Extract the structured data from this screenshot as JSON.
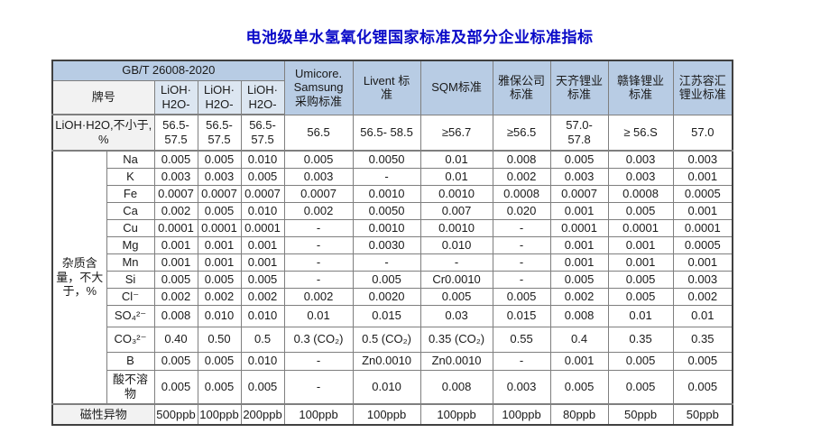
{
  "title": "电池级单水氢氧化锂国家标准及部分企业标准指标",
  "colors": {
    "title_blue": "#0a0ac8",
    "header_blue": "#b8cce4",
    "grade_blue": "#dce6f1",
    "label_gray": "#f2f2f2",
    "outer_border": "#404040",
    "grid_border": "#7f7f7f"
  },
  "table": {
    "header": {
      "gbt": "GB/T 26008-2020",
      "brand": "牌号",
      "grades": [
        "LiOH·\nH2O-",
        "LiOH·\nH2O-",
        "LiOH·\nH2O-"
      ],
      "companies": [
        "Umicore.\nSamsung\n采购标准",
        "Livent 标\n准",
        "SQM标准",
        "雅保公司\n标准",
        "天齐锂业\n标准",
        "赣锋锂业\n标准",
        "江苏容汇\n锂业标准"
      ]
    },
    "lioh_row": {
      "label": "LiOH·H2O,不小于, %",
      "values": [
        "56.5-\n57.5",
        "56.5-\n57.5",
        "56.5-\n57.5",
        "56.5",
        "56.5- 58.5",
        "≥56.7",
        "≥56.5",
        "57.0-\n57.8",
        "≥ 56.S",
        "57.0"
      ]
    },
    "impurity_section_label": "杂质含量，不大于，%",
    "impurity_rows": [
      {
        "element": "Na",
        "values": [
          "0.005",
          "0.005",
          "0.010",
          "0.005",
          "0.0050",
          "0.01",
          "0.008",
          "0.005",
          "0.003",
          "0.003"
        ]
      },
      {
        "element": "K",
        "values": [
          "0.003",
          "0.003",
          "0.005",
          "0.003",
          "-",
          "0.01",
          "0.002",
          "0.003",
          "0.003",
          "0.001"
        ]
      },
      {
        "element": "Fe",
        "values": [
          "0.0007",
          "0.0007",
          "0.0007",
          "0.0007",
          "0.0010",
          "0.0010",
          "0.0008",
          "0.0007",
          "0.0008",
          "0.0005"
        ]
      },
      {
        "element": "Ca",
        "values": [
          "0.002",
          "0.005",
          "0.010",
          "0.002",
          "0.0050",
          "0.007",
          "0.020",
          "0.001",
          "0.005",
          "0.001"
        ]
      },
      {
        "element": "Cu",
        "values": [
          "0.0001",
          "0.0001",
          "0.0001",
          "-",
          "0.0010",
          "0.0010",
          "-",
          "0.0001",
          "0.0001",
          "0.0001"
        ]
      },
      {
        "element": "Mg",
        "values": [
          "0.001",
          "0.001",
          "0.001",
          "-",
          "0.0030",
          "0.010",
          "-",
          "0.001",
          "0.001",
          "0.0005"
        ]
      },
      {
        "element": "Mn",
        "values": [
          "0.001",
          "0.001",
          "0.001",
          "-",
          "-",
          "-",
          "-",
          "0.001",
          "0.001",
          "0.001"
        ]
      },
      {
        "element": "Si",
        "values": [
          "0.005",
          "0.005",
          "0.005",
          "-",
          "0.005",
          "Cr0.0010",
          "-",
          "0.005",
          "0.005",
          "0.003"
        ]
      },
      {
        "element": "Cl⁻",
        "values": [
          "0.002",
          "0.002",
          "0.002",
          "0.002",
          "0.0020",
          "0.005",
          "0.005",
          "0.002",
          "0.005",
          "0.002"
        ]
      },
      {
        "element": "SO₄²⁻",
        "values": [
          "0.008",
          "0.010",
          "0.010",
          "0.01",
          "0.015",
          "0.03",
          "0.015",
          "0.008",
          "0.01",
          "0.01"
        ]
      },
      {
        "element": "CO₃²⁻",
        "values": [
          "0.40",
          "0.50",
          "0.5",
          "0.3 (CO₂)",
          "0.5  (CO₂)",
          "0.35  (CO₂)",
          "0.55",
          "0.4",
          "0.35",
          "0.35"
        ]
      },
      {
        "element": "B",
        "values": [
          "0.005",
          "0.005",
          "0.010",
          "-",
          "Zn0.0010",
          "Zn0.0010",
          "-",
          "0.001",
          "0.005",
          "0.005"
        ]
      },
      {
        "element": "酸不溶物",
        "values": [
          "0.005",
          "0.005",
          "0.005",
          "-",
          "0.010",
          "0.008",
          "0.003",
          "0.005",
          "0.005",
          "0.005"
        ]
      }
    ],
    "magnetic_row": {
      "label": "磁性异物",
      "values": [
        "500ppb",
        "100ppb",
        "200ppb",
        "100ppb",
        "100ppb",
        "100ppb",
        "100ppb",
        "80ppb",
        "50ppb",
        "50ppb"
      ]
    }
  }
}
